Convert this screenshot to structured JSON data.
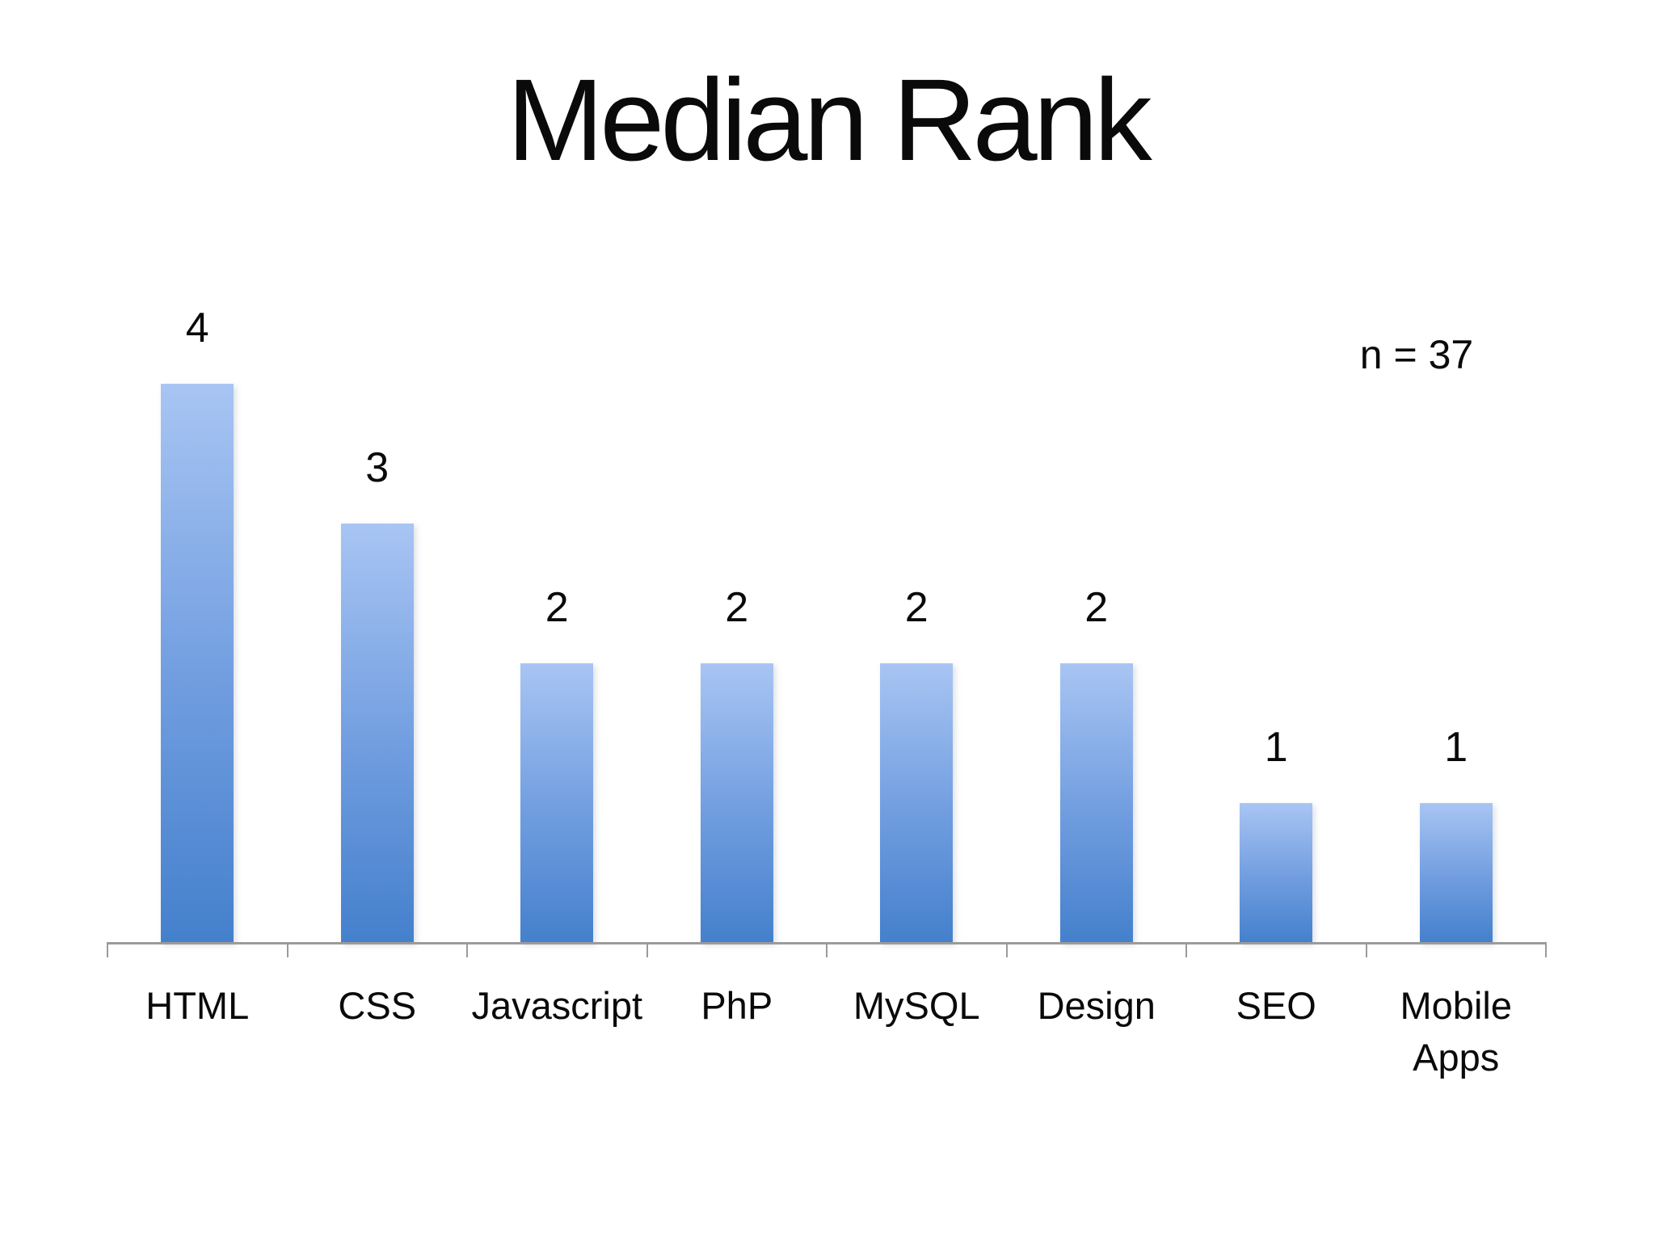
{
  "title": "Median Rank",
  "annotation": "n = 37",
  "chart_data": {
    "type": "bar",
    "title": "Median Rank",
    "annotation": "n = 37",
    "categories": [
      "HTML",
      "CSS",
      "Javascript",
      "PhP",
      "MySQL",
      "Design",
      "SEO",
      "Mobile Apps"
    ],
    "values": [
      4,
      3,
      2,
      2,
      2,
      2,
      1,
      1
    ],
    "data_labels_shown": true,
    "xlabel": "",
    "ylabel": "",
    "ylim": [
      0,
      4
    ],
    "grid": false,
    "legend": "none",
    "y_axis_shown": false,
    "colors": {
      "bar_gradient_top": "#a8c5f3",
      "bar_gradient_bottom": "#4480cc",
      "axis": "#9b9b9b",
      "text": "#0a0a0a",
      "background": "#ffffff"
    }
  }
}
